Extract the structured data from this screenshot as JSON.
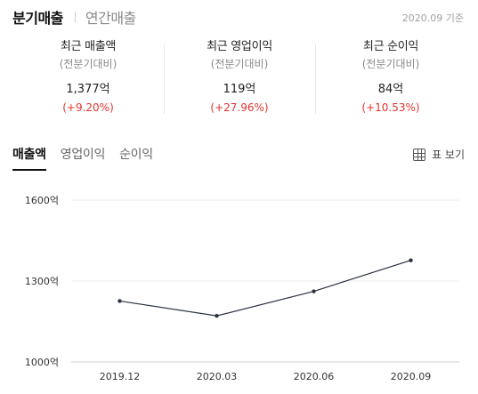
{
  "top_tabs": {
    "quarterly": "분기매출",
    "annual": "연간매출"
  },
  "as_of": "2020.09 기준",
  "summary": [
    {
      "title": "최근 매출액",
      "sub": "(전분기대비)",
      "value": "1,377억",
      "change": "(+9.20%)"
    },
    {
      "title": "최근 영업이익",
      "sub": "(전분기대비)",
      "value": "119억",
      "change": "(+27.96%)"
    },
    {
      "title": "최근 순이익",
      "sub": "(전분기대비)",
      "value": "84억",
      "change": "(+10.53%)"
    }
  ],
  "sub_tabs": {
    "revenue": "매출액",
    "operating_profit": "영업이익",
    "net_profit": "순이익"
  },
  "table_view_label": "표 보기",
  "colors": {
    "accent_red": "#e5342d",
    "line": "#2a3140"
  },
  "chart_data": {
    "type": "line",
    "categories": [
      "2019.12",
      "2020.03",
      "2020.06",
      "2020.09"
    ],
    "series": [
      {
        "values": [
          1226,
          1171,
          1262,
          1377
        ]
      }
    ],
    "y_ticks": [
      1000,
      1300,
      1600
    ],
    "y_tick_labels": [
      "1000억",
      "1300억",
      "1600억"
    ],
    "ylim": [
      1000,
      1600
    ],
    "grid": "horizontal"
  }
}
